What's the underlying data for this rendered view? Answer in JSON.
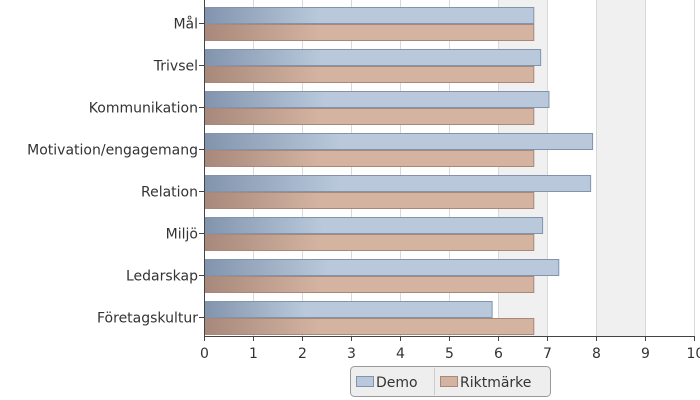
{
  "chart_data": {
    "type": "bar",
    "orientation": "horizontal",
    "categories": [
      "Mål",
      "Trivsel",
      "Kommunikation",
      "Motivation/engagemang",
      "Relation",
      "Miljö",
      "Ledarskap",
      "Företagskultur"
    ],
    "series": [
      {
        "name": "Demo",
        "color": "#b9c9db",
        "stroke": "#8294ad",
        "values": [
          6.72,
          6.86,
          7.03,
          7.92,
          7.88,
          6.9,
          7.23,
          5.87
        ]
      },
      {
        "name": "Riktmärke",
        "color": "#d4b3a1",
        "stroke": "#a7887a",
        "values": [
          6.72,
          6.72,
          6.72,
          6.72,
          6.72,
          6.72,
          6.72,
          6.72
        ]
      }
    ],
    "xlim": [
      0,
      10
    ],
    "ticks": [
      "0",
      "1",
      "2",
      "3",
      "4",
      "5",
      "6",
      "7",
      "8",
      "9",
      "10"
    ],
    "grid": true,
    "shaded_bands": [
      [
        6,
        7
      ],
      [
        8,
        9
      ]
    ],
    "band_color": "#f0f0f0",
    "legend_position": "bottom-center",
    "title": "",
    "xlabel": "",
    "ylabel": ""
  }
}
